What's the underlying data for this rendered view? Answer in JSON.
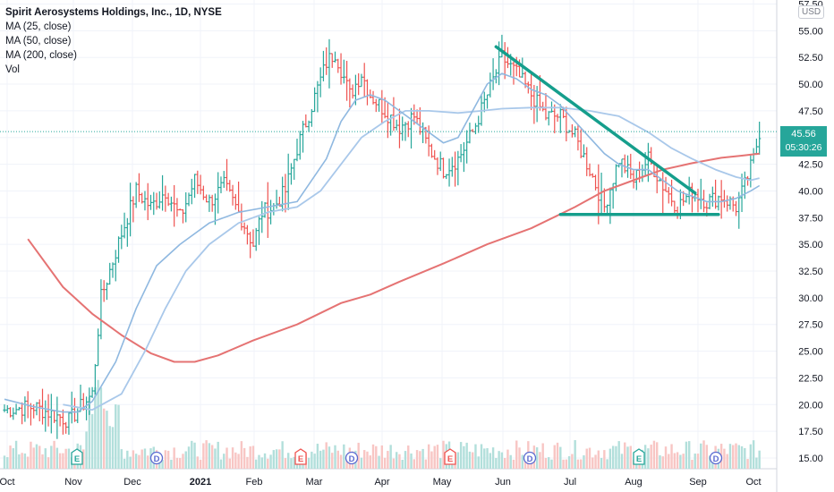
{
  "legend": {
    "title": "Spirit Aerosystems Holdings, Inc., 1D, NYSE",
    "studies": [
      "MA (25, close)",
      "MA (50, close)",
      "MA (200, close)",
      "Vol"
    ]
  },
  "currency": "USD",
  "last_price": {
    "value": "45.56",
    "countdown": "05:30:26",
    "color": "#26a69a"
  },
  "colors": {
    "up": "#26a69a",
    "down": "#ef5350",
    "ma25": "#8fb8e0",
    "ma50": "#a9c8ea",
    "ma200": "#e57373",
    "trendline": "#159e8c",
    "grid": "#f0f3fa"
  },
  "chart_data": {
    "type": "ohlc",
    "y_ticks": [
      "57.50",
      "55.00",
      "52.50",
      "50.00",
      "47.50",
      "45.00",
      "42.50",
      "40.00",
      "37.50",
      "35.00",
      "32.50",
      "30.00",
      "27.50",
      "25.00",
      "22.50",
      "20.00",
      "17.50",
      "15.00"
    ],
    "ylim": [
      14.5,
      57.5
    ],
    "x_labels": [
      "Oct",
      "Nov",
      "Dec",
      "2021",
      "Feb",
      "Mar",
      "Apr",
      "May",
      "Jun",
      "Jul",
      "Aug",
      "Sep",
      "Oct"
    ],
    "events": [
      "E",
      "D",
      "E",
      "D",
      "E",
      "D",
      "E",
      "D"
    ],
    "price_path": [
      [
        0,
        19.5
      ],
      [
        10,
        19.8
      ],
      [
        22,
        18.5
      ],
      [
        30,
        21
      ],
      [
        33,
        30
      ],
      [
        40,
        36
      ],
      [
        45,
        40
      ],
      [
        50,
        38.5
      ],
      [
        55,
        40
      ],
      [
        60,
        37.5
      ],
      [
        65,
        41
      ],
      [
        70,
        39
      ],
      [
        75,
        40.5
      ],
      [
        80,
        38
      ],
      [
        85,
        35
      ],
      [
        88,
        38
      ],
      [
        92,
        38.5
      ],
      [
        96,
        40
      ],
      [
        100,
        44
      ],
      [
        105,
        48
      ],
      [
        110,
        52
      ],
      [
        113,
        53
      ],
      [
        118,
        49
      ],
      [
        122,
        51
      ],
      [
        125,
        49
      ],
      [
        130,
        47.5
      ],
      [
        135,
        46
      ],
      [
        140,
        47
      ],
      [
        145,
        44
      ],
      [
        150,
        42
      ],
      [
        155,
        43
      ],
      [
        160,
        45.5
      ],
      [
        165,
        49
      ],
      [
        170,
        52.5
      ],
      [
        175,
        51
      ],
      [
        180,
        49
      ],
      [
        185,
        47
      ],
      [
        190,
        47
      ],
      [
        195,
        45
      ],
      [
        200,
        42
      ],
      [
        205,
        38.5
      ],
      [
        210,
        43
      ],
      [
        215,
        41
      ],
      [
        220,
        43
      ],
      [
        225,
        40.5
      ],
      [
        230,
        38.5
      ],
      [
        235,
        40
      ],
      [
        240,
        39
      ],
      [
        245,
        39.5
      ],
      [
        250,
        38.5
      ],
      [
        253,
        40.5
      ],
      [
        256,
        43
      ],
      [
        258,
        45.56
      ]
    ],
    "ma25": [
      [
        0,
        20.5
      ],
      [
        10,
        19.8
      ],
      [
        20,
        19.3
      ],
      [
        25,
        19.3
      ],
      [
        30,
        20.3
      ],
      [
        38,
        24
      ],
      [
        45,
        29
      ],
      [
        52,
        33
      ],
      [
        60,
        35
      ],
      [
        70,
        37
      ],
      [
        80,
        38
      ],
      [
        90,
        38.5
      ],
      [
        100,
        39
      ],
      [
        110,
        43
      ],
      [
        115,
        46.5
      ],
      [
        120,
        48.5
      ],
      [
        125,
        49
      ],
      [
        130,
        48.5
      ],
      [
        135,
        47.5
      ],
      [
        140,
        46.5
      ],
      [
        145,
        45.5
      ],
      [
        150,
        44.5
      ],
      [
        155,
        45
      ],
      [
        160,
        47.5
      ],
      [
        165,
        50
      ],
      [
        170,
        51
      ],
      [
        175,
        50.5
      ],
      [
        180,
        49.5
      ],
      [
        185,
        49
      ],
      [
        190,
        48
      ],
      [
        195,
        46.5
      ],
      [
        200,
        45
      ],
      [
        205,
        43.5
      ],
      [
        210,
        42.5
      ],
      [
        215,
        42
      ],
      [
        220,
        42
      ],
      [
        225,
        41
      ],
      [
        230,
        40
      ],
      [
        235,
        39.5
      ],
      [
        240,
        39
      ],
      [
        245,
        39
      ],
      [
        250,
        39.3
      ],
      [
        255,
        40
      ],
      [
        258,
        40.5
      ]
    ],
    "ma50": [
      [
        20,
        20
      ],
      [
        30,
        19.5
      ],
      [
        40,
        21
      ],
      [
        48,
        25
      ],
      [
        55,
        29
      ],
      [
        62,
        32.5
      ],
      [
        70,
        35
      ],
      [
        80,
        37
      ],
      [
        90,
        38
      ],
      [
        100,
        38.5
      ],
      [
        108,
        40
      ],
      [
        115,
        42.5
      ],
      [
        122,
        45
      ],
      [
        130,
        46.5
      ],
      [
        137,
        47.5
      ],
      [
        145,
        47.5
      ],
      [
        155,
        47.3
      ],
      [
        163,
        47.5
      ],
      [
        170,
        47.7
      ],
      [
        180,
        47.8
      ],
      [
        190,
        47.8
      ],
      [
        200,
        47.5
      ],
      [
        210,
        47
      ],
      [
        220,
        45.5
      ],
      [
        228,
        44
      ],
      [
        235,
        43
      ],
      [
        243,
        42
      ],
      [
        250,
        41.3
      ],
      [
        255,
        41
      ],
      [
        258,
        41.2
      ]
    ],
    "ma200": [
      [
        8,
        35.5
      ],
      [
        20,
        31
      ],
      [
        30,
        28.5
      ],
      [
        40,
        26.5
      ],
      [
        50,
        24.8
      ],
      [
        58,
        24
      ],
      [
        65,
        24
      ],
      [
        73,
        24.6
      ],
      [
        85,
        26
      ],
      [
        100,
        27.5
      ],
      [
        115,
        29.5
      ],
      [
        125,
        30.3
      ],
      [
        135,
        31.5
      ],
      [
        150,
        33.2
      ],
      [
        165,
        35
      ],
      [
        180,
        36.5
      ],
      [
        195,
        38.5
      ],
      [
        205,
        40
      ],
      [
        215,
        41
      ],
      [
        225,
        42
      ],
      [
        235,
        42.6
      ],
      [
        245,
        43.1
      ],
      [
        252,
        43.3
      ],
      [
        258,
        43.5
      ]
    ],
    "trend_lines": [
      {
        "name": "descending-resistance",
        "from": [
          168,
          53.5
        ],
        "to": [
          236,
          39.8
        ]
      },
      {
        "name": "horizontal-support",
        "from": [
          190,
          37.8
        ],
        "to": [
          244,
          37.8
        ]
      }
    ]
  }
}
